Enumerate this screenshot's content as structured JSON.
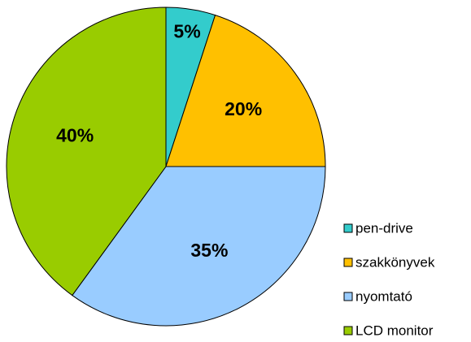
{
  "chart_data": {
    "type": "pie",
    "categories": [
      "pen-drive",
      "szakkönyvek",
      "nyomtató",
      "LCD monitor"
    ],
    "values": [
      5,
      20,
      35,
      40
    ],
    "value_labels": [
      "5%",
      "20%",
      "35%",
      "40%"
    ],
    "colors": [
      "#33cccc",
      "#ffc000",
      "#99ccff",
      "#99cc00"
    ],
    "legend": "right"
  }
}
